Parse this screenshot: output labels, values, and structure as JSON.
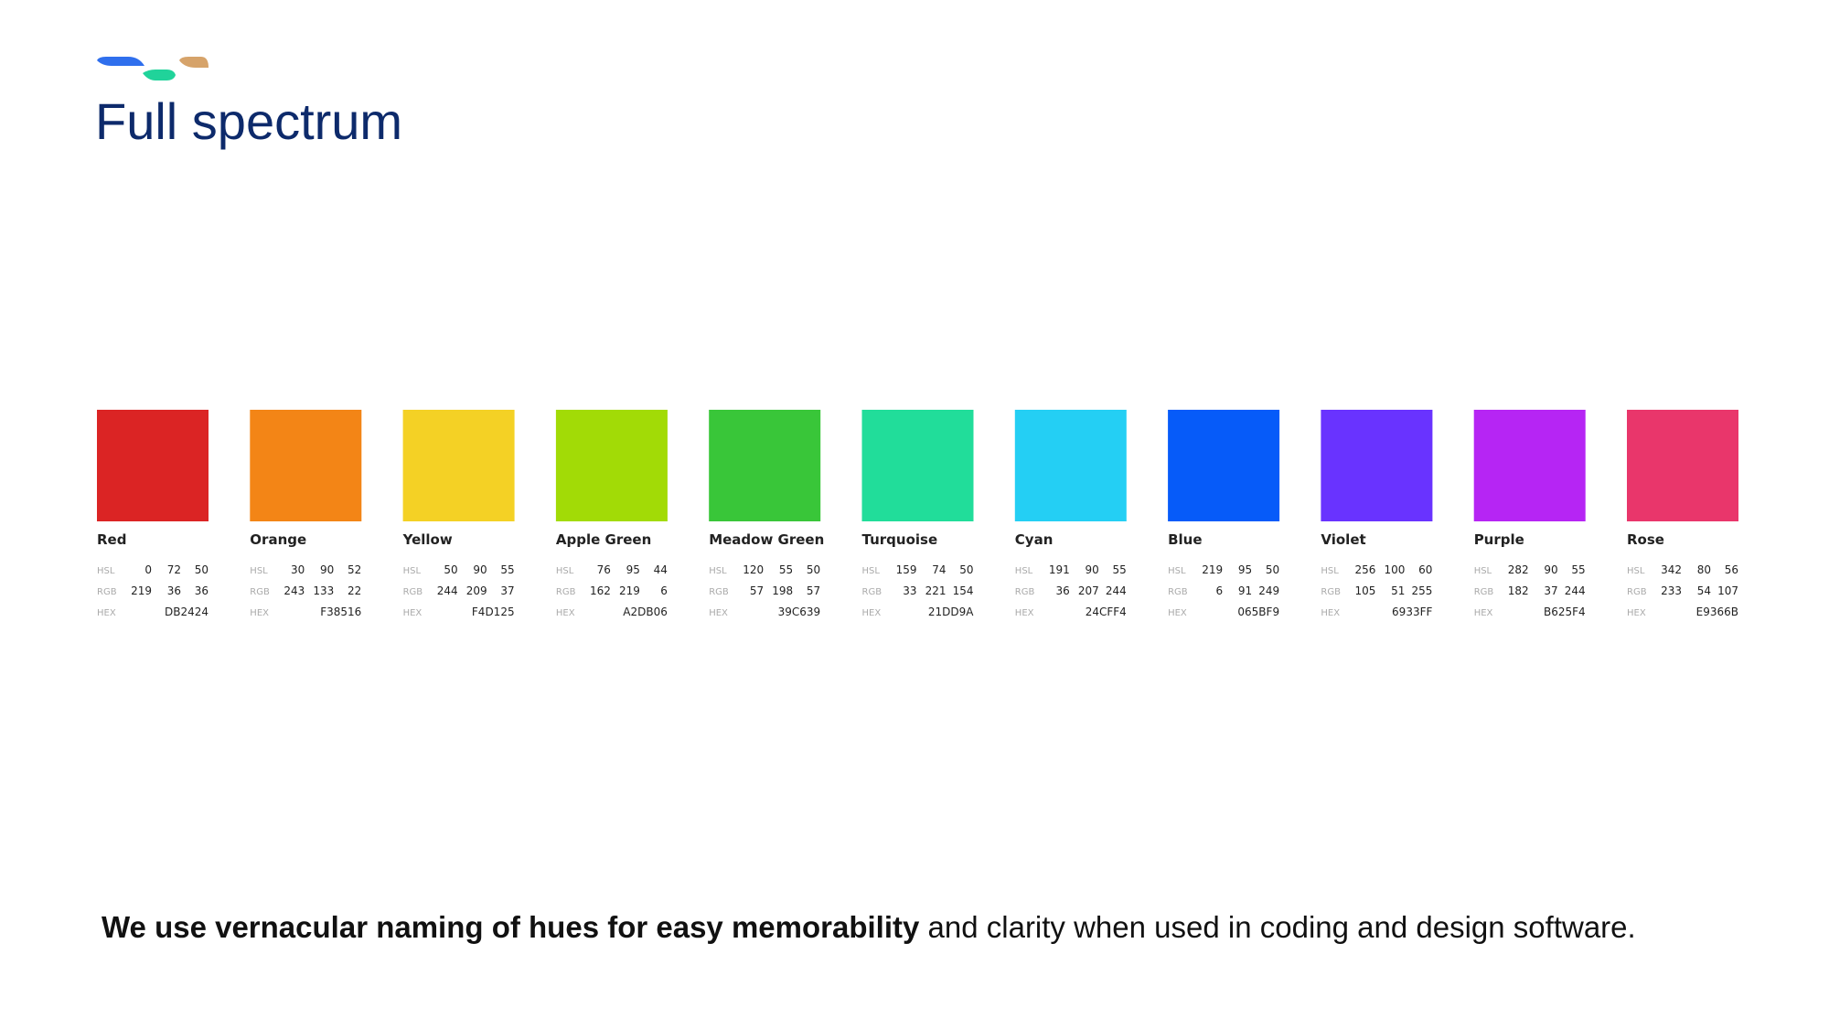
{
  "title": "Full spectrum",
  "labels": {
    "hsl": "HSL",
    "rgb": "RGB",
    "hex": "HEX"
  },
  "swatches": [
    {
      "name": "Red",
      "color": "#DB2424",
      "hsl": [
        0,
        72,
        50
      ],
      "rgb": [
        219,
        36,
        36
      ],
      "hex": "DB2424"
    },
    {
      "name": "Orange",
      "color": "#F38516",
      "hsl": [
        30,
        90,
        52
      ],
      "rgb": [
        243,
        133,
        22
      ],
      "hex": "F38516"
    },
    {
      "name": "Yellow",
      "color": "#F4D125",
      "hsl": [
        50,
        90,
        55
      ],
      "rgb": [
        244,
        209,
        37
      ],
      "hex": "F4D125"
    },
    {
      "name": "Apple Green",
      "color": "#A2DB06",
      "hsl": [
        76,
        95,
        44
      ],
      "rgb": [
        162,
        219,
        6
      ],
      "hex": "A2DB06"
    },
    {
      "name": "Meadow Green",
      "color": "#39C639",
      "hsl": [
        120,
        55,
        50
      ],
      "rgb": [
        57,
        198,
        57
      ],
      "hex": "39C639"
    },
    {
      "name": "Turquoise",
      "color": "#21DD9A",
      "hsl": [
        159,
        74,
        50
      ],
      "rgb": [
        33,
        221,
        154
      ],
      "hex": "21DD9A"
    },
    {
      "name": "Cyan",
      "color": "#24CFF4",
      "hsl": [
        191,
        90,
        55
      ],
      "rgb": [
        36,
        207,
        244
      ],
      "hex": "24CFF4"
    },
    {
      "name": "Blue",
      "color": "#065BF9",
      "hsl": [
        219,
        95,
        50
      ],
      "rgb": [
        6,
        91,
        249
      ],
      "hex": "065BF9"
    },
    {
      "name": "Violet",
      "color": "#6933FF",
      "hsl": [
        256,
        100,
        60
      ],
      "rgb": [
        105,
        51,
        255
      ],
      "hex": "6933FF"
    },
    {
      "name": "Purple",
      "color": "#B625F4",
      "hsl": [
        282,
        90,
        55
      ],
      "rgb": [
        182,
        37,
        244
      ],
      "hex": "B625F4"
    },
    {
      "name": "Rose",
      "color": "#E9366B",
      "hsl": [
        342,
        80,
        56
      ],
      "rgb": [
        233,
        54,
        107
      ],
      "hex": "E9366B"
    }
  ],
  "footer": {
    "bold": "We use vernacular naming of hues for easy memorability",
    "rest": "and clarity when used in coding and design software."
  }
}
